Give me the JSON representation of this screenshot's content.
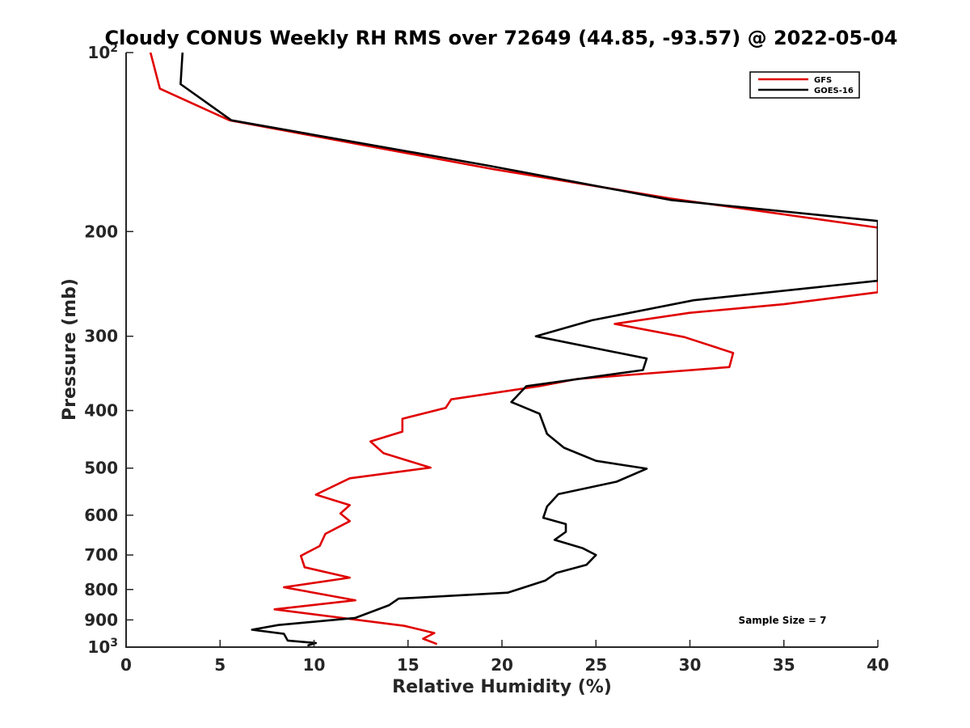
{
  "chart_data": {
    "type": "line",
    "title": "Cloudy CONUS Weekly RH RMS over 72649 (44.85, -93.57) @ 2022-05-04",
    "xlabel": "Relative Humidity (%)",
    "ylabel": "Pressure (mb)",
    "xlim": [
      0,
      40
    ],
    "ylim": [
      100,
      1000
    ],
    "y_scale": "log",
    "y_reversed": true,
    "grid": false,
    "legend_position": "top-right",
    "x_ticks": [
      "0",
      "5",
      "10",
      "15",
      "20",
      "25",
      "30",
      "35",
      "40"
    ],
    "y_ticks": [
      {
        "value": 100,
        "base": "10",
        "sup": "2"
      },
      {
        "value": 200,
        "label": "200"
      },
      {
        "value": 300,
        "label": "300"
      },
      {
        "value": 400,
        "label": "400"
      },
      {
        "value": 500,
        "label": "500"
      },
      {
        "value": 600,
        "label": "600"
      },
      {
        "value": 700,
        "label": "700"
      },
      {
        "value": 800,
        "label": "800"
      },
      {
        "value": 900,
        "label": "900"
      },
      {
        "value": 1000,
        "base": "10",
        "sup": "3"
      }
    ],
    "annotation": "Sample Size = 7",
    "series": [
      {
        "name": "GFS",
        "color": "#e00000",
        "points": [
          [
            1.3,
            100
          ],
          [
            1.8,
            115
          ],
          [
            5.5,
            130
          ],
          [
            19.5,
            157
          ],
          [
            29,
            176
          ],
          [
            40,
            197
          ],
          [
            40,
            253
          ],
          [
            35,
            265
          ],
          [
            30,
            274
          ],
          [
            26,
            286
          ],
          [
            29.7,
            301
          ],
          [
            32.3,
            320
          ],
          [
            32.1,
            338
          ],
          [
            24,
            354
          ],
          [
            22,
            364
          ],
          [
            17.3,
            383
          ],
          [
            17,
            396
          ],
          [
            14.7,
            413
          ],
          [
            14.7,
            434
          ],
          [
            13,
            451
          ],
          [
            13.7,
            472
          ],
          [
            16.2,
            499
          ],
          [
            11.9,
            520
          ],
          [
            10.1,
            554
          ],
          [
            11.9,
            577
          ],
          [
            11.4,
            596
          ],
          [
            11.9,
            614
          ],
          [
            10.6,
            645
          ],
          [
            10.3,
            676
          ],
          [
            9.3,
            702
          ],
          [
            9.5,
            734
          ],
          [
            11.9,
            764
          ],
          [
            8.4,
            793
          ],
          [
            12.2,
            834
          ],
          [
            7.9,
            864
          ],
          [
            14.8,
            921
          ],
          [
            16.4,
            947
          ],
          [
            15.8,
            968
          ],
          [
            16.5,
            987
          ]
        ]
      },
      {
        "name": "GOES-16",
        "color": "#000000",
        "points": [
          [
            3,
            100
          ],
          [
            2.9,
            113
          ],
          [
            5.6,
            130
          ],
          [
            19.3,
            155
          ],
          [
            29,
            177
          ],
          [
            40,
            192
          ],
          [
            40,
            242
          ],
          [
            30.2,
            261
          ],
          [
            24.8,
            282
          ],
          [
            21.8,
            300
          ],
          [
            27.7,
            327
          ],
          [
            27.5,
            342
          ],
          [
            21.3,
            364
          ],
          [
            20.5,
            387
          ],
          [
            22,
            405
          ],
          [
            22.4,
            438
          ],
          [
            23.3,
            462
          ],
          [
            25,
            486
          ],
          [
            27.7,
            501
          ],
          [
            26.1,
            527
          ],
          [
            23,
            553
          ],
          [
            22.4,
            580
          ],
          [
            22.2,
            606
          ],
          [
            23.4,
            621
          ],
          [
            23.4,
            640
          ],
          [
            22.8,
            660
          ],
          [
            24.3,
            682
          ],
          [
            25,
            700
          ],
          [
            24.5,
            727
          ],
          [
            22.9,
            750
          ],
          [
            22.3,
            773
          ],
          [
            20.3,
            810
          ],
          [
            14.5,
            829
          ],
          [
            14,
            850
          ],
          [
            12.2,
            893
          ],
          [
            8.1,
            918
          ],
          [
            6.7,
            935
          ],
          [
            8.4,
            950
          ],
          [
            8.6,
            975
          ],
          [
            10.1,
            984
          ],
          [
            9.7,
            993
          ]
        ]
      }
    ]
  }
}
